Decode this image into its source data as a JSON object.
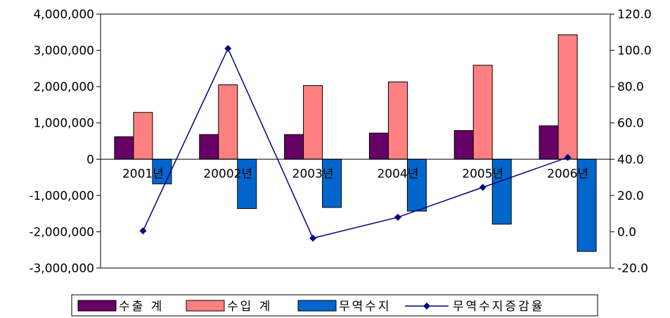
{
  "chart_data": {
    "type": "bar",
    "categories": [
      "2001년",
      "20002년",
      "2003년",
      "2004년",
      "2005년",
      "2006년"
    ],
    "series": [
      {
        "name": "수출 계",
        "kind": "bar",
        "axis": "left",
        "color": "#660066",
        "values": [
          620000,
          680000,
          680000,
          720000,
          790000,
          920000
        ]
      },
      {
        "name": "수입 계",
        "kind": "bar",
        "axis": "left",
        "color": "#ff8080",
        "values": [
          1290000,
          2050000,
          2030000,
          2130000,
          2590000,
          3430000
        ]
      },
      {
        "name": "무역수지",
        "kind": "bar",
        "axis": "left",
        "color": "#0066cc",
        "values": [
          -680000,
          -1360000,
          -1330000,
          -1430000,
          -1790000,
          -2540000
        ]
      },
      {
        "name": "무역수지증감율",
        "kind": "line",
        "axis": "right",
        "color": "#000080",
        "values": [
          0.5,
          101.0,
          -3.5,
          8.0,
          24.5,
          41.0
        ]
      }
    ],
    "left_axis": {
      "min": -3000000,
      "max": 4000000,
      "step": 1000000,
      "tick_labels": [
        "-3,000,000",
        "-2,000,000",
        "-1,000,000",
        "0",
        "1,000,000",
        "2,000,000",
        "3,000,000",
        "4,000,000"
      ]
    },
    "right_axis": {
      "min": -20,
      "max": 120,
      "step": 20,
      "tick_labels": [
        "-20.0",
        "0.0",
        "20.0",
        "40.0",
        "60.0",
        "80.0",
        "100.0",
        "120.0"
      ]
    },
    "legend": {
      "position": "bottom",
      "items": [
        "수출 계",
        "수입 계",
        "무역수지",
        "무역수지증감율"
      ]
    },
    "grid": false
  }
}
